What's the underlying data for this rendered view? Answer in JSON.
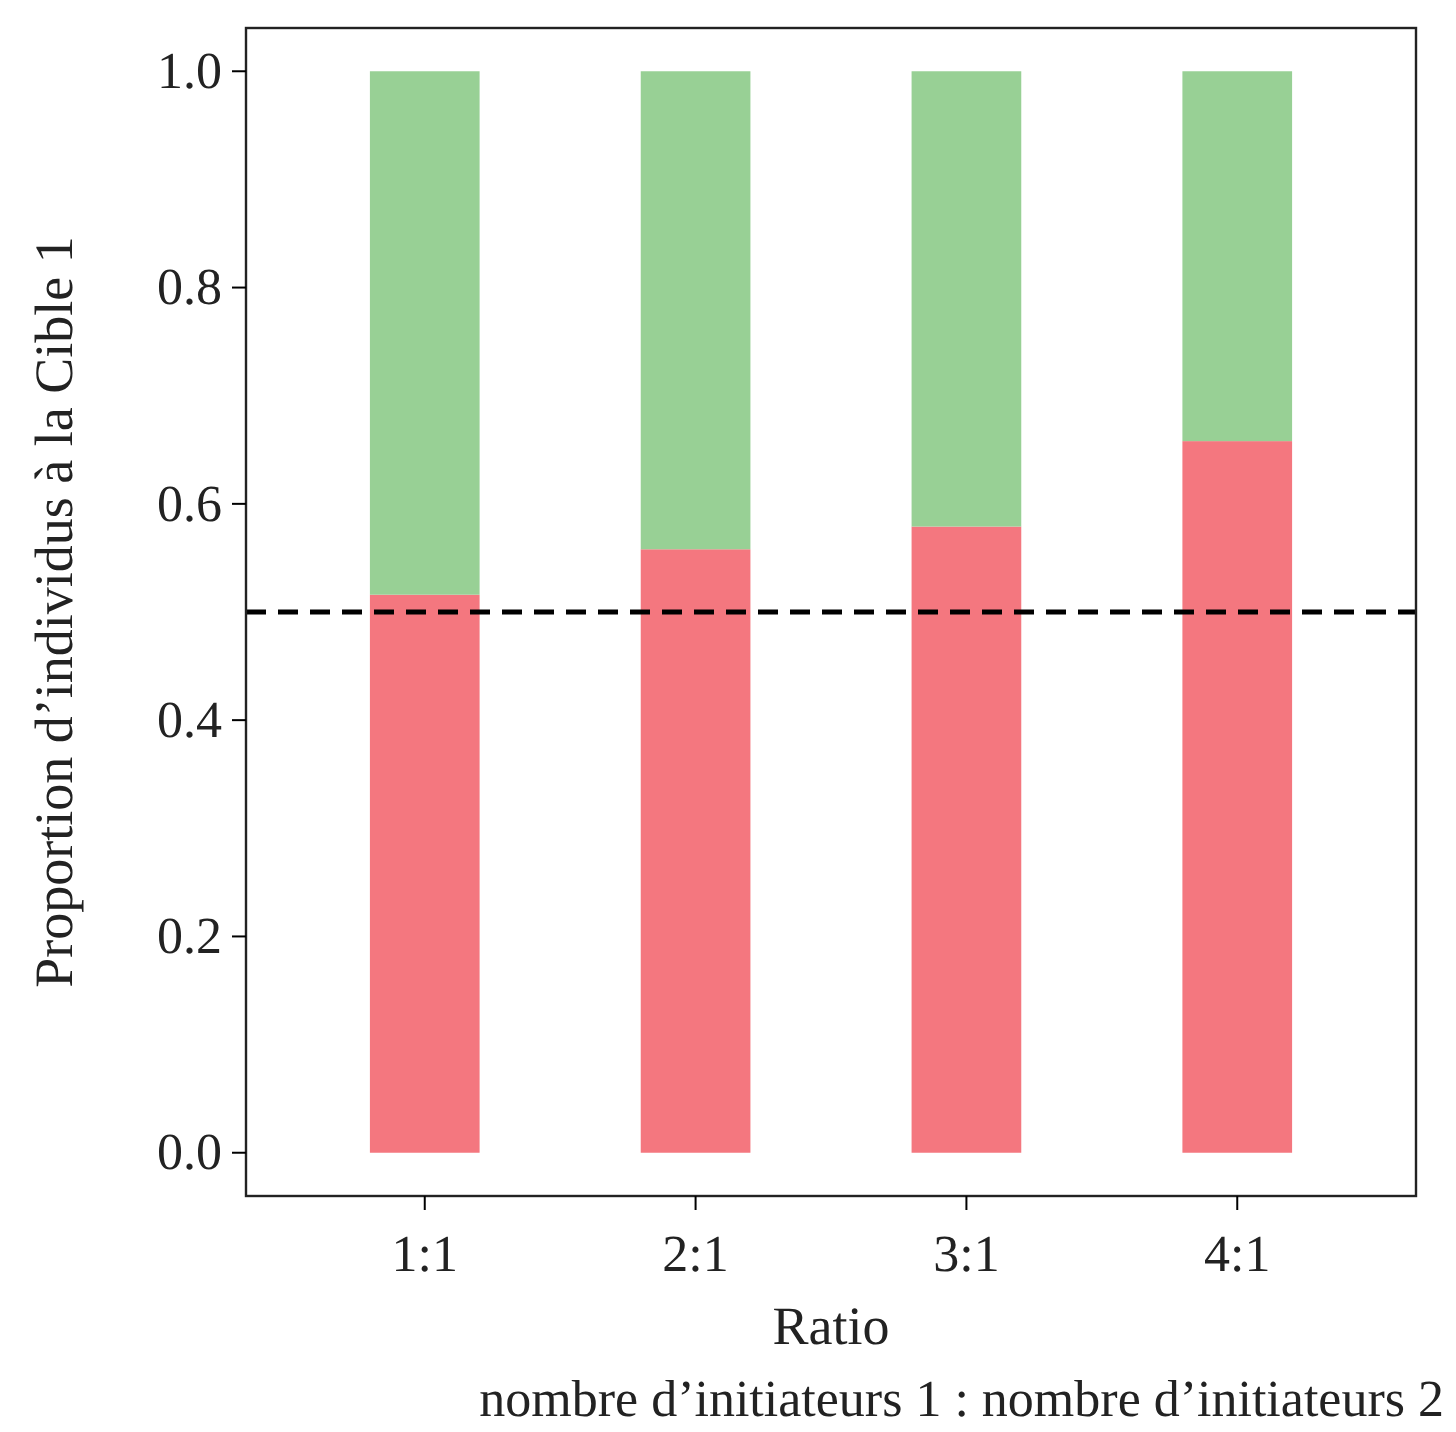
{
  "chart_data": {
    "type": "bar",
    "stacked": true,
    "xlabel": "Ratio",
    "ylabel": "Proportion d’individus à la Cible 1",
    "annotations": [
      "nombre d’initiateurs 1 : nombre d’initiateurs 2"
    ],
    "categories": [
      "1:1",
      "2:1",
      "3:1",
      "4:1"
    ],
    "series": [
      {
        "color": "#f4777f",
        "values": [
          0.516,
          0.558,
          0.579,
          0.658
        ]
      },
      {
        "color": "#98d095",
        "values": [
          0.484,
          0.442,
          0.421,
          0.342
        ]
      }
    ],
    "ylim": [
      -0.04,
      1.04
    ],
    "yticks": [
      {
        "value": 0,
        "label": "0.0"
      },
      {
        "value": 0.2,
        "label": "0.2"
      },
      {
        "value": 0.4,
        "label": "0.4"
      },
      {
        "value": 0.6,
        "label": "0.6"
      },
      {
        "value": 0.8,
        "label": "0.8"
      },
      {
        "value": 1,
        "label": "1.0"
      }
    ],
    "ref_lines": [
      {
        "axis": "y",
        "value": 0.5,
        "color": "#000000",
        "line_style": "dashed"
      }
    ],
    "grid": false
  }
}
